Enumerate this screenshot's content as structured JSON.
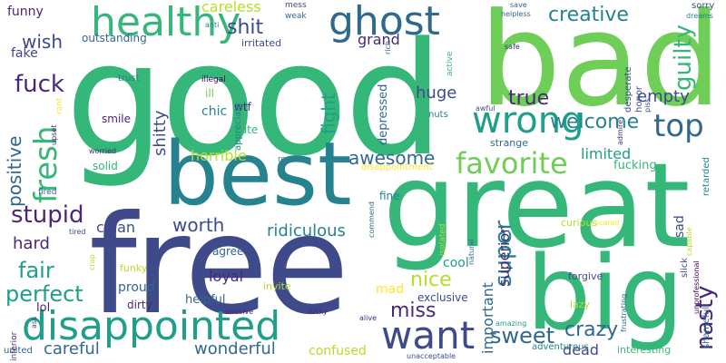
{
  "palette": {
    "c1": "#440154",
    "c2": "#482878",
    "c3": "#3e4a89",
    "c4": "#31688e",
    "c5": "#26828e",
    "c6": "#1f9e89",
    "c7": "#35b779",
    "c8": "#6ece58",
    "c9": "#b5de2b",
    "c10": "#fde725"
  },
  "words": [
    {
      "text": "good",
      "color": "c7"
    },
    {
      "text": "bad",
      "color": "c8"
    },
    {
      "text": "free",
      "color": "c3"
    },
    {
      "text": "great",
      "color": "c7"
    },
    {
      "text": "best",
      "color": "c5"
    },
    {
      "text": "big",
      "color": "c7"
    },
    {
      "text": "disappointed",
      "color": "c6"
    },
    {
      "text": "healthy",
      "color": "c7"
    },
    {
      "text": "ghost",
      "color": "c4"
    },
    {
      "text": "wrong",
      "color": "c6"
    },
    {
      "text": "want",
      "color": "c3"
    },
    {
      "text": "fresh",
      "color": "c7"
    },
    {
      "text": "favorite",
      "color": "c8"
    },
    {
      "text": "top",
      "color": "c4"
    },
    {
      "text": "creative",
      "color": "c5"
    },
    {
      "text": "nasty",
      "color": "c2"
    },
    {
      "text": "fuck",
      "color": "c2"
    },
    {
      "text": "stupid",
      "color": "c2"
    },
    {
      "text": "sweet",
      "color": "c4"
    },
    {
      "text": "awesome",
      "color": "c4"
    },
    {
      "text": "super",
      "color": "c5"
    },
    {
      "text": "fair",
      "color": "c6"
    },
    {
      "text": "perfect",
      "color": "c6"
    },
    {
      "text": "crazy",
      "color": "c4"
    },
    {
      "text": "guilty",
      "color": "c7"
    },
    {
      "text": "true",
      "color": "c2"
    },
    {
      "text": "welcome",
      "color": "c5"
    },
    {
      "text": "shit",
      "color": "c3"
    },
    {
      "text": "wish",
      "color": "c3"
    },
    {
      "text": "fight",
      "color": "c6"
    },
    {
      "text": "ridiculous",
      "color": "c5"
    },
    {
      "text": "worth",
      "color": "c3"
    },
    {
      "text": "positive",
      "color": "c4"
    },
    {
      "text": "huge",
      "color": "c3"
    },
    {
      "text": "miss",
      "color": "c2"
    },
    {
      "text": "nice",
      "color": "c9"
    },
    {
      "text": "careless",
      "color": "c9"
    },
    {
      "text": "grand",
      "color": "c2"
    },
    {
      "text": "empty",
      "color": "c3"
    },
    {
      "text": "shitty",
      "color": "c3"
    },
    {
      "text": "hard",
      "color": "c2"
    },
    {
      "text": "careful",
      "color": "c4"
    },
    {
      "text": "wonderful",
      "color": "c4"
    },
    {
      "text": "horrible",
      "color": "c9"
    },
    {
      "text": "loyal",
      "color": "c2"
    },
    {
      "text": "limited",
      "color": "c6"
    },
    {
      "text": "clean",
      "color": "c3"
    },
    {
      "text": "superior",
      "color": "c2"
    },
    {
      "text": "important",
      "color": "c4"
    },
    {
      "text": "dead",
      "color": "c3"
    },
    {
      "text": "mad",
      "color": "c10"
    },
    {
      "text": "sad",
      "color": "c3"
    },
    {
      "text": "chic",
      "color": "c5"
    },
    {
      "text": "funny",
      "color": "c2"
    },
    {
      "text": "fake",
      "color": "c3"
    },
    {
      "text": "outstanding",
      "color": "c4"
    },
    {
      "text": "irritated",
      "color": "c3"
    },
    {
      "text": "depressed",
      "color": "c4"
    },
    {
      "text": "cool",
      "color": "c6"
    },
    {
      "text": "fucking",
      "color": "c7"
    },
    {
      "text": "proud",
      "color": "c4"
    },
    {
      "text": "confused",
      "color": "c9"
    },
    {
      "text": "helpful",
      "color": "c4"
    },
    {
      "text": "exclusive",
      "color": "c3"
    },
    {
      "text": "lol",
      "color": "c2"
    },
    {
      "text": "solid",
      "color": "c7"
    },
    {
      "text": "smile",
      "color": "c2"
    },
    {
      "text": "wtf",
      "color": "c2"
    },
    {
      "text": "cute",
      "color": "c7"
    },
    {
      "text": "ill",
      "color": "c8"
    },
    {
      "text": "agree",
      "color": "c4"
    },
    {
      "text": "fine",
      "color": "c5"
    },
    {
      "text": "dirty",
      "color": "c2"
    },
    {
      "text": "funky",
      "color": "c9"
    },
    {
      "text": "invite",
      "color": "c9"
    },
    {
      "text": "curious",
      "color": "c9"
    },
    {
      "text": "forgive",
      "color": "c3"
    },
    {
      "text": "lazy",
      "color": "c9"
    },
    {
      "text": "interesting",
      "color": "c7"
    },
    {
      "text": "adventurous",
      "color": "c5"
    },
    {
      "text": "united",
      "color": "c4"
    },
    {
      "text": "strange",
      "color": "c4"
    },
    {
      "text": "nuts",
      "color": "c5"
    },
    {
      "text": "slick",
      "color": "c3"
    },
    {
      "text": "shameful",
      "color": "c4"
    },
    {
      "text": "retarded",
      "color": "c5"
    },
    {
      "text": "sorry",
      "color": "c3"
    },
    {
      "text": "honor",
      "color": "c3"
    },
    {
      "text": "desperate",
      "color": "c3"
    },
    {
      "text": "trust",
      "color": "c5"
    },
    {
      "text": "appreciate",
      "color": "c5"
    },
    {
      "text": "disappointment",
      "color": "c10"
    },
    {
      "text": "restless",
      "color": "c5"
    },
    {
      "text": "illegal",
      "color": "c1"
    },
    {
      "text": "active",
      "color": "c7"
    },
    {
      "text": "mess",
      "color": "c3"
    },
    {
      "text": "weak",
      "color": "c4"
    },
    {
      "text": "anti",
      "color": "c5"
    },
    {
      "text": "rich",
      "color": "c4"
    },
    {
      "text": "safe",
      "color": "c2"
    },
    {
      "text": "save",
      "color": "c4"
    },
    {
      "text": "helpless",
      "color": "c4"
    },
    {
      "text": "dreams",
      "color": "c5"
    },
    {
      "text": "piss",
      "color": "c3"
    },
    {
      "text": "admire",
      "color": "c2"
    },
    {
      "text": "awful",
      "color": "c3"
    },
    {
      "text": "rant",
      "color": "c10"
    },
    {
      "text": "upset",
      "color": "c2"
    },
    {
      "text": "worried",
      "color": "c2"
    },
    {
      "text": "tired",
      "color": "c3"
    },
    {
      "text": "crap",
      "color": "c9"
    },
    {
      "text": "fired",
      "color": "c4"
    },
    {
      "text": "scared",
      "color": "c10"
    },
    {
      "text": "capable",
      "color": "c9"
    },
    {
      "text": "unprofessional",
      "color": "c1"
    },
    {
      "text": "isolated",
      "color": "c9"
    },
    {
      "text": "natural",
      "color": "c4"
    },
    {
      "text": "commend",
      "color": "c4"
    },
    {
      "text": "frustrating",
      "color": "c4"
    },
    {
      "text": "amazing",
      "color": "c6"
    },
    {
      "text": "alive",
      "color": "c2"
    },
    {
      "text": "lucky",
      "color": "c2"
    },
    {
      "text": "abusive",
      "color": "c2"
    },
    {
      "text": "unacceptable",
      "color": "c3"
    },
    {
      "text": "inferior",
      "color": "c2"
    },
    {
      "text": "ass",
      "color": "c3"
    }
  ]
}
